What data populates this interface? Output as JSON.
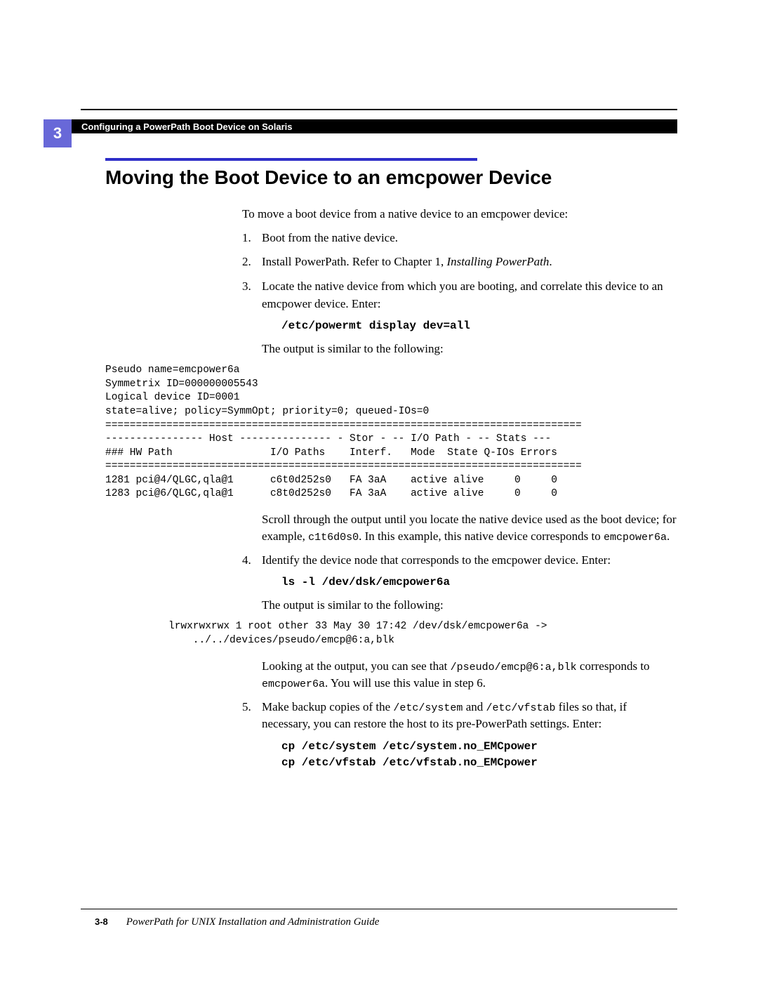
{
  "chapter_number": "3",
  "header_title": "Configuring a PowerPath Boot Device on Solaris",
  "section_title": "Moving the Boot Device to an emcpower Device",
  "intro": "To move a boot device from a native device to an emcpower device:",
  "steps": {
    "s1": "Boot from the native device.",
    "s2_a": "Install PowerPath. Refer to Chapter 1, ",
    "s2_b": "Installing PowerPath",
    "s2_c": ".",
    "s3": "Locate the native device from which you are booting, and correlate this device to an emcpower device. Enter:",
    "s3_cmd": "/etc/powermt display dev=all",
    "s3_out_intro": "The output is similar to the following:",
    "s4": "Identify the device node that corresponds to the emcpower device. Enter:",
    "s4_cmd": "ls -l /dev/dsk/emcpower6a",
    "s4_out_intro": "The output is similar to the following:",
    "s5_a": "Make backup copies of the ",
    "s5_b": "/etc/system",
    "s5_c": " and ",
    "s5_d": "/etc/vfstab",
    "s5_e": " files so that, if necessary, you can restore the host to its pre-PowerPath settings. Enter:",
    "s5_cmd": "cp /etc/system /etc/system.no_EMCpower\ncp /etc/vfstab /etc/vfstab.no_EMCpower"
  },
  "output1": "Pseudo name=emcpower6a\nSymmetrix ID=000000005543\nLogical device ID=0001\nstate=alive; policy=SymmOpt; priority=0; queued-IOs=0\n==============================================================================\n---------------- Host --------------- - Stor - -- I/O Path - -- Stats ---\n### HW Path                I/O Paths    Interf.   Mode  State Q-IOs Errors\n==============================================================================\n1281 pci@4/QLGC,qla@1      c6t0d252s0   FA 3aA    active alive     0     0\n1283 pci@6/QLGC,qla@1      c8t0d252s0   FA 3aA    active alive     0     0",
  "scroll_note_a": "Scroll through the output until you locate the native device used as the boot device; for example, ",
  "scroll_note_b": "c1t6d0s0",
  "scroll_note_c": ". In this example, this native device corresponds to ",
  "scroll_note_d": "emcpower6a",
  "scroll_note_e": ".",
  "output2": "lrwxrwxrwx 1 root other 33 May 30 17:42 /dev/dsk/emcpower6a ->\n    ../../devices/pseudo/emcp@6:a,blk",
  "lookout_a": "Looking at the output, you can see that ",
  "lookout_b": "/pseudo/emcp@6:a,blk",
  "lookout_c": " corresponds to ",
  "lookout_d": "emcpower6a",
  "lookout_e": ". You will use this value in step 6.",
  "footer": {
    "page": "3-8",
    "doc": "PowerPath for UNIX Installation and Administration Guide"
  },
  "colors": {
    "badge_bg": "#6868d8",
    "rule_blue": "#2e2ec8",
    "text": "#000000",
    "bg": "#ffffff"
  },
  "typography": {
    "body_pt": 17,
    "mono_pt": 14.5,
    "h1_pt": 28,
    "header_pt": 13
  }
}
